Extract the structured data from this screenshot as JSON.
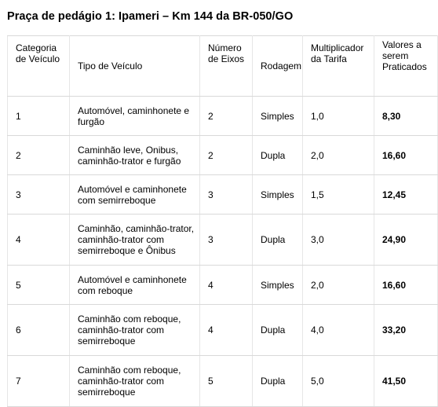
{
  "title": "Praça de pedágio 1: Ipameri – Km 144 da BR-050/GO",
  "headers": {
    "categoria": "Categoria de Veículo",
    "tipo": "Tipo de Veículo",
    "eixos": "Número de Eixos",
    "rodagem": "Rodagem",
    "multiplicador": "Multiplicador da Tarifa",
    "valores": "Valores a serem Praticados"
  },
  "rows": [
    {
      "categoria": "1",
      "tipo": "Automóvel, caminhonete e furgão",
      "eixos": "2",
      "rodagem": "Simples",
      "multiplicador": "1,0",
      "valor": "8,30"
    },
    {
      "categoria": "2",
      "tipo": "Caminhão leve, Onibus, caminhão-trator e furgão",
      "eixos": "2",
      "rodagem": "Dupla",
      "multiplicador": "2,0",
      "valor": "16,60"
    },
    {
      "categoria": "3",
      "tipo": "Automóvel e caminhonete com semirreboque",
      "eixos": "3",
      "rodagem": "Simples",
      "multiplicador": "1,5",
      "valor": "12,45"
    },
    {
      "categoria": "4",
      "tipo": "Caminhão, caminhão-trator, caminhão-trator com semirreboque e Ônibus",
      "eixos": "3",
      "rodagem": "Dupla",
      "multiplicador": "3,0",
      "valor": "24,90"
    },
    {
      "categoria": "5",
      "tipo": "Automóvel e caminhonete com reboque",
      "eixos": "4",
      "rodagem": "Simples",
      "multiplicador": "2,0",
      "valor": "16,60"
    },
    {
      "categoria": "6",
      "tipo": "Caminhão com reboque, caminhão-trator com semirreboque",
      "eixos": "4",
      "rodagem": "Dupla",
      "multiplicador": "4,0",
      "valor": "33,20"
    },
    {
      "categoria": "7",
      "tipo": "Caminhão com reboque, caminhão-trator com semirreboque",
      "eixos": "5",
      "rodagem": "Dupla",
      "multiplicador": "5,0",
      "valor": "41,50"
    }
  ]
}
